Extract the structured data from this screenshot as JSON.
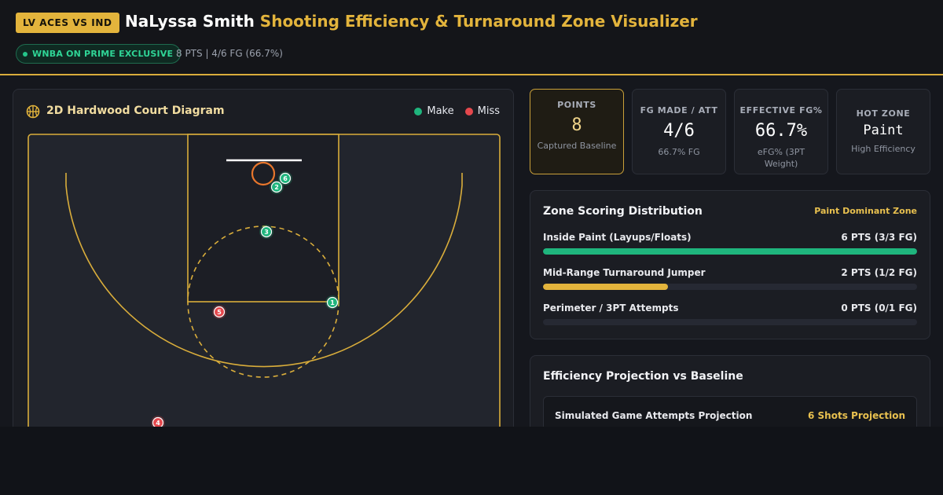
{
  "header": {
    "matchup": "LV ACES VS IND",
    "player": "NaLyssa Smith",
    "title_rest": "Shooting Efficiency & Turnaround Zone Visualizer",
    "broadcast_badge": "WNBA ON PRIME EXCLUSIVE",
    "summary": "8 PTS | 4/6 FG (66.7%)"
  },
  "court": {
    "title": "2D Hardwood Court Diagram",
    "icon": "basketball-icon",
    "legend": [
      {
        "label": "Make",
        "color": "#1fb57d"
      },
      {
        "label": "Miss",
        "color": "#e5484d"
      }
    ],
    "shots": [
      {
        "id": "1",
        "result": "make"
      },
      {
        "id": "2",
        "result": "make"
      },
      {
        "id": "3",
        "result": "make"
      },
      {
        "id": "4",
        "result": "miss"
      },
      {
        "id": "5",
        "result": "miss"
      },
      {
        "id": "6",
        "result": "make"
      }
    ]
  },
  "stats": [
    {
      "label": "POINTS",
      "value": "8",
      "sub": "Captured Baseline",
      "active": true
    },
    {
      "label": "FG MADE / ATT",
      "value": "4/6",
      "sub": "66.7% FG",
      "active": false
    },
    {
      "label": "EFFECTIVE FG%",
      "value": "66.7%",
      "sub": "eFG% (3PT Weight)",
      "active": false
    },
    {
      "label": "HOT ZONE",
      "value": "Paint",
      "sub": "High Efficiency",
      "active": false
    }
  ],
  "zones": {
    "title": "Zone Scoring Distribution",
    "tag": "Paint Dominant Zone",
    "rows": [
      {
        "label": "Inside Paint (Layups/Floats)",
        "value": "6 PTS (3/3 FG)",
        "fill": 1.0,
        "color": "#1fb57d"
      },
      {
        "label": "Mid-Range Turnaround Jumper",
        "value": "2 PTS (1/2 FG)",
        "fill": 0.333,
        "color": "#e3b43c"
      },
      {
        "label": "Perimeter / 3PT Attempts",
        "value": "0 PTS (0/1 FG)",
        "fill": 0,
        "color": "#e3b43c"
      }
    ]
  },
  "projection": {
    "title": "Efficiency Projection vs Baseline",
    "row_label": "Simulated Game Attempts Projection",
    "row_value": "6 Shots Projection"
  },
  "colors": {
    "accent": "#e3b43c",
    "make": "#1fb57d",
    "miss": "#e5484d",
    "rim": "#e8762c"
  }
}
